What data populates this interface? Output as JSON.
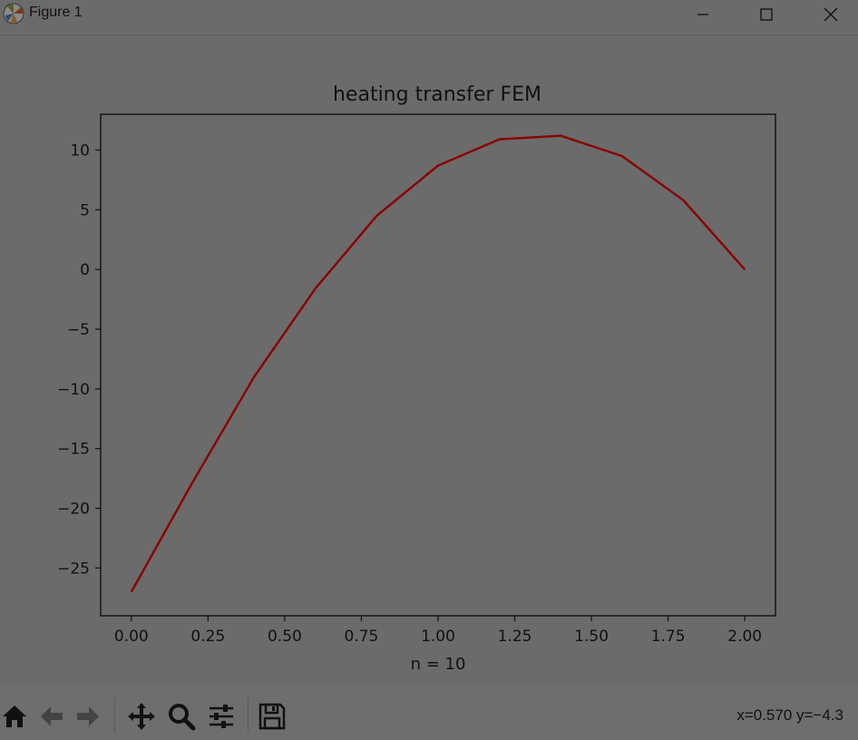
{
  "window": {
    "title": "Figure 1",
    "icon": "matplotlib-icon",
    "controls": [
      "minimize-icon",
      "maximize-icon",
      "close-icon"
    ]
  },
  "toolbar": {
    "buttons": [
      "home-icon",
      "back-icon",
      "forward-icon",
      "pan-icon",
      "zoom-icon",
      "configure-subplots-icon",
      "save-icon"
    ],
    "coords": "x=0.570 y=−4.3"
  },
  "colors": {
    "background": "#6b6b6b",
    "line": "#8b0000",
    "text": "#111111"
  },
  "chart_data": {
    "type": "line",
    "title": "heating transfer FEM",
    "xlabel": "n = 10",
    "ylabel": "",
    "xlim": [
      -0.1,
      2.1
    ],
    "ylim": [
      -29,
      13
    ],
    "xticks": [
      0.0,
      0.25,
      0.5,
      0.75,
      1.0,
      1.25,
      1.5,
      1.75,
      2.0
    ],
    "xtick_labels": [
      "0.00",
      "0.25",
      "0.50",
      "0.75",
      "1.00",
      "1.25",
      "1.50",
      "1.75",
      "2.00"
    ],
    "yticks": [
      10,
      5,
      0,
      -5,
      -10,
      -15,
      -20,
      -25
    ],
    "ytick_labels": [
      "10",
      "5",
      "0",
      "−5",
      "−10",
      "−15",
      "−20",
      "−25"
    ],
    "grid": false,
    "series": [
      {
        "x": [
          0.0,
          0.2,
          0.4,
          0.6,
          0.8,
          1.0,
          1.2,
          1.4,
          1.6,
          1.8,
          2.0
        ],
        "y": [
          -27.0,
          -17.8,
          -9.0,
          -1.6,
          4.5,
          8.7,
          10.9,
          11.2,
          9.5,
          5.8,
          0.0
        ]
      }
    ]
  }
}
